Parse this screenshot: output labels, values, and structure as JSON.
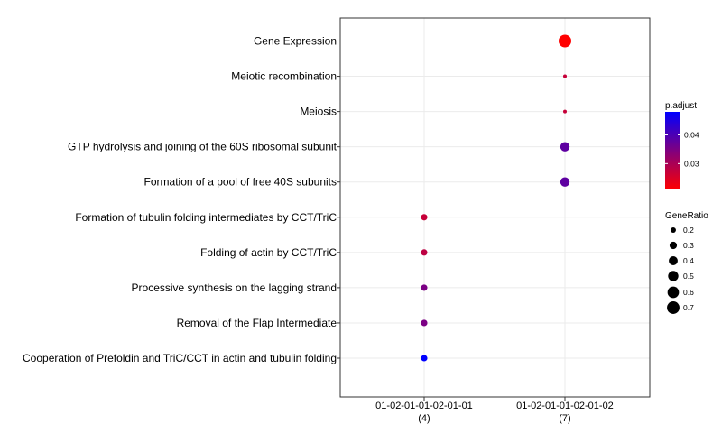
{
  "chart_data": {
    "type": "scatter",
    "title": "",
    "xlabel": "",
    "ylabel": "",
    "grid": true,
    "legend_position": "right",
    "x_categories": [
      {
        "label": "01-02-01-01-02-01-01",
        "count": "(4)"
      },
      {
        "label": "01-02-01-01-02-01-02",
        "count": "(7)"
      }
    ],
    "y_categories": [
      "Gene Expression",
      "Meiotic recombination",
      "Meiosis",
      "GTP hydrolysis and joining of the 60S ribosomal subunit",
      "Formation of a pool of free 40S subunits",
      "Formation of tubulin folding intermediates by CCT/TriC",
      "Folding of actin by CCT/TriC",
      "Processive synthesis on the lagging strand",
      "Removal of the Flap Intermediate",
      "Cooperation of Prefoldin and TriC/CCT  in actin and tubulin folding"
    ],
    "points": [
      {
        "x": "01-02-01-01-02-01-02",
        "y": "Gene Expression",
        "gene_ratio": 0.71,
        "p_adjust": 0.021
      },
      {
        "x": "01-02-01-01-02-01-02",
        "y": "Meiotic recombination",
        "gene_ratio": 0.14,
        "p_adjust": 0.027
      },
      {
        "x": "01-02-01-01-02-01-02",
        "y": "Meiosis",
        "gene_ratio": 0.14,
        "p_adjust": 0.027
      },
      {
        "x": "01-02-01-01-02-01-02",
        "y": "GTP hydrolysis and joining of the 60S ribosomal subunit",
        "gene_ratio": 0.43,
        "p_adjust": 0.038
      },
      {
        "x": "01-02-01-01-02-01-02",
        "y": "Formation of a pool of free 40S subunits",
        "gene_ratio": 0.43,
        "p_adjust": 0.038
      },
      {
        "x": "01-02-01-01-02-01-01",
        "y": "Formation of tubulin folding intermediates by CCT/TriC",
        "gene_ratio": 0.25,
        "p_adjust": 0.027
      },
      {
        "x": "01-02-01-01-02-01-01",
        "y": "Folding of actin by CCT/TriC",
        "gene_ratio": 0.25,
        "p_adjust": 0.028
      },
      {
        "x": "01-02-01-01-02-01-01",
        "y": "Processive synthesis on the lagging strand",
        "gene_ratio": 0.25,
        "p_adjust": 0.035
      },
      {
        "x": "01-02-01-01-02-01-01",
        "y": "Removal of the Flap Intermediate",
        "gene_ratio": 0.25,
        "p_adjust": 0.035
      },
      {
        "x": "01-02-01-01-02-01-01",
        "y": "Cooperation of Prefoldin and TriC/CCT  in actin and tubulin folding",
        "gene_ratio": 0.25,
        "p_adjust": 0.048
      }
    ],
    "color_legend": {
      "title": "p.adjust",
      "range": [
        0.021,
        0.048
      ],
      "ticks": [
        {
          "value": 0.03,
          "label": "0.03"
        },
        {
          "value": 0.04,
          "label": "0.04"
        }
      ],
      "low_color": "#ff0000",
      "high_color": "#0000ff"
    },
    "size_legend": {
      "title": "GeneRatio",
      "range": [
        0.14,
        0.71
      ],
      "ticks": [
        {
          "value": 0.2,
          "label": "0.2"
        },
        {
          "value": 0.3,
          "label": "0.3"
        },
        {
          "value": 0.4,
          "label": "0.4"
        },
        {
          "value": 0.5,
          "label": "0.5"
        },
        {
          "value": 0.6,
          "label": "0.6"
        },
        {
          "value": 0.7,
          "label": "0.7"
        }
      ]
    },
    "colors": {
      "panel_border": "#333333",
      "grid": "#ebebeb",
      "point_low": "#ff0000",
      "point_high": "#0000ff",
      "legend_key": "#000000"
    }
  }
}
